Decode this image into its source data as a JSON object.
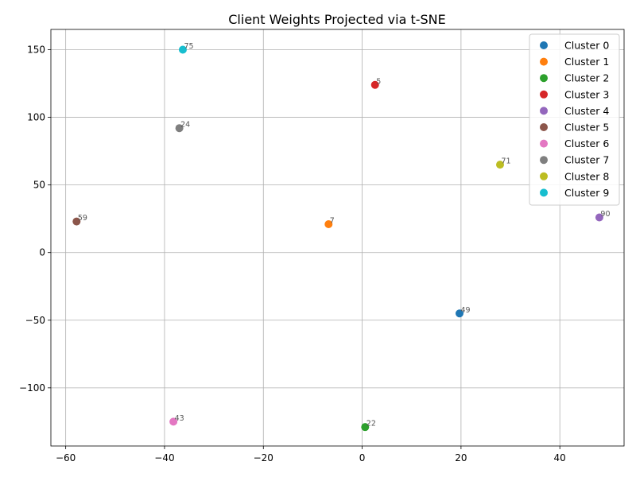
{
  "chart_data": {
    "type": "scatter",
    "title": "Client Weights Projected via t-SNE",
    "xlabel": "",
    "ylabel": "",
    "xlim": [
      -63,
      53
    ],
    "ylim": [
      -143,
      165
    ],
    "xticks": [
      -60,
      -40,
      -20,
      0,
      20,
      40
    ],
    "yticks": [
      -100,
      -50,
      0,
      50,
      100,
      150
    ],
    "xtick_labels": [
      "−60",
      "−40",
      "−20",
      "0",
      "20",
      "40"
    ],
    "ytick_labels": [
      "−100",
      "−50",
      "0",
      "50",
      "100",
      "150"
    ],
    "grid": true,
    "legend_position": "top-right",
    "series": [
      {
        "name": "Cluster 0",
        "color": "#1f77b4",
        "points": [
          {
            "x": 19.7,
            "y": -45,
            "label": "49"
          }
        ]
      },
      {
        "name": "Cluster 1",
        "color": "#ff7f0e",
        "points": [
          {
            "x": -6.8,
            "y": 21,
            "label": "7"
          }
        ]
      },
      {
        "name": "Cluster 2",
        "color": "#2ca02c",
        "points": [
          {
            "x": 0.6,
            "y": -129,
            "label": "22"
          }
        ]
      },
      {
        "name": "Cluster 3",
        "color": "#d62728",
        "points": [
          {
            "x": 2.6,
            "y": 124,
            "label": "5"
          }
        ]
      },
      {
        "name": "Cluster 4",
        "color": "#9467bd",
        "points": [
          {
            "x": 48.0,
            "y": 26,
            "label": "90"
          }
        ]
      },
      {
        "name": "Cluster 5",
        "color": "#8c564b",
        "points": [
          {
            "x": -57.8,
            "y": 23,
            "label": "59"
          }
        ]
      },
      {
        "name": "Cluster 6",
        "color": "#e377c2",
        "points": [
          {
            "x": -38.2,
            "y": -125,
            "label": "43"
          }
        ]
      },
      {
        "name": "Cluster 7",
        "color": "#7f7f7f",
        "points": [
          {
            "x": -37.0,
            "y": 92,
            "label": "24"
          }
        ]
      },
      {
        "name": "Cluster 8",
        "color": "#bcbd22",
        "points": [
          {
            "x": 27.9,
            "y": 65,
            "label": "71"
          }
        ]
      },
      {
        "name": "Cluster 9",
        "color": "#17becf",
        "points": [
          {
            "x": -36.3,
            "y": 150,
            "label": "75"
          }
        ]
      }
    ]
  }
}
